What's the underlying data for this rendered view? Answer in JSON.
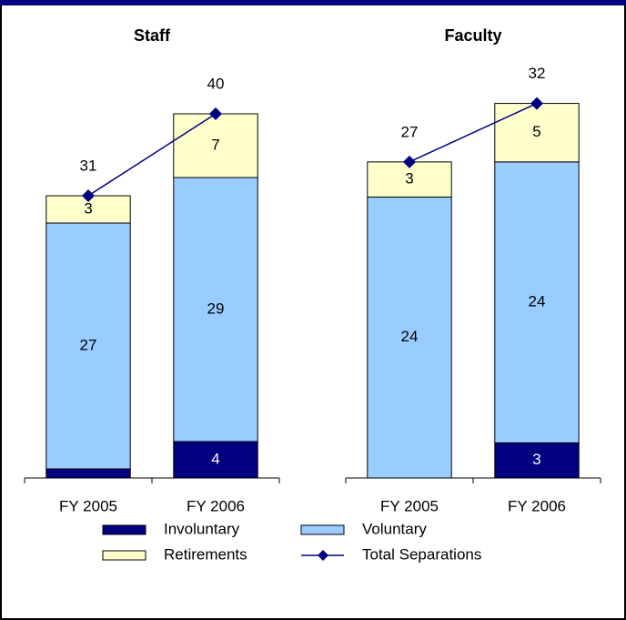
{
  "chart_data": [
    {
      "type": "bar",
      "stacked": true,
      "title": "Staff",
      "categories": [
        "FY 2005",
        "FY 2006"
      ],
      "series": [
        {
          "name": "Involuntary",
          "color": "#000080",
          "values": [
            1,
            4
          ]
        },
        {
          "name": "Voluntary",
          "color": "#99ccff",
          "values": [
            27,
            29
          ]
        },
        {
          "name": "Retirements",
          "color": "#ffffcc",
          "values": [
            3,
            7
          ]
        },
        {
          "name": "Total Separations",
          "type": "line",
          "color": "#000080",
          "values": [
            31,
            40
          ]
        }
      ],
      "ylim": [
        0,
        45
      ]
    },
    {
      "type": "bar",
      "stacked": true,
      "title": "Faculty",
      "categories": [
        "FY 2005",
        "FY 2006"
      ],
      "series": [
        {
          "color": "#000080",
          "values": [
            null,
            3
          ]
        },
        {
          "color": "#99ccff",
          "values": [
            24,
            24
          ]
        },
        {
          "color": "#ffffcc",
          "values": [
            3,
            5
          ]
        },
        {
          "type": "line",
          "color": "#000080",
          "values": [
            27,
            32
          ]
        }
      ],
      "ylim": [
        0,
        35
      ]
    }
  ]
}
